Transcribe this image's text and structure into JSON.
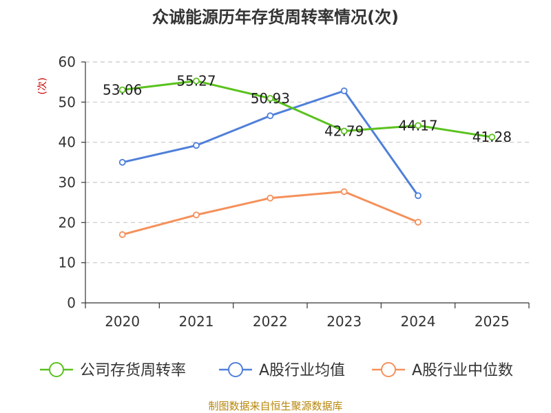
{
  "chart_data": {
    "type": "line",
    "title": "众诚能源历年存货周转率情况(次)",
    "ylabel": "(次)",
    "xlabel": "",
    "categories": [
      "2020",
      "2021",
      "2022",
      "2023",
      "2024",
      "2025"
    ],
    "ylim": [
      0,
      60
    ],
    "yticks": [
      0,
      10,
      20,
      30,
      40,
      50,
      60
    ],
    "grid": true,
    "legend_position": "bottom",
    "series": [
      {
        "name": "公司存货周转率",
        "color": "#5ac21d",
        "values": [
          53.06,
          55.27,
          50.93,
          42.79,
          44.17,
          41.28
        ],
        "labels": [
          "53.06",
          "55.27",
          "50.93",
          "42.79",
          "44.17",
          "41.28"
        ]
      },
      {
        "name": "A股行业均值",
        "color": "#4f7fd9",
        "values": [
          35.0,
          39.2,
          46.6,
          52.8,
          26.7,
          null
        ]
      },
      {
        "name": "A股行业中位数",
        "color": "#f5905a",
        "values": [
          17.0,
          21.9,
          26.1,
          27.7,
          20.1,
          null
        ]
      }
    ],
    "source": "制图数据来自恒生聚源数据库"
  }
}
